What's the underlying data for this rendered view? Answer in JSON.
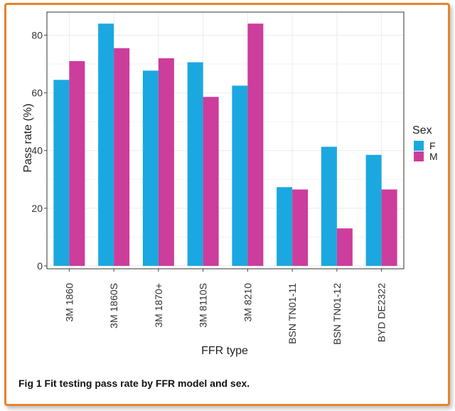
{
  "caption": "Fig 1 Fit testing pass rate by FFR model and sex.",
  "colors": {
    "frame": "#e8842c",
    "F": "#1ba8e0",
    "M": "#cc3d9c",
    "grid": "#ebebeb",
    "axis": "#444444"
  },
  "chart_data": {
    "type": "bar",
    "title": "",
    "xlabel": "FFR type",
    "ylabel": "Pass rate (%)",
    "ylim": [
      -1,
      88
    ],
    "yticks": [
      0,
      20,
      40,
      60,
      80
    ],
    "categories": [
      "3M 1860",
      "3M 1860S",
      "3M 1870+",
      "3M 8110S",
      "3M 8210",
      "BSN TN01-11",
      "BSN TN01-12",
      "BYD DE2322"
    ],
    "legend_title": "Sex",
    "legend_position": "right",
    "series": [
      {
        "name": "F",
        "values": [
          64.5,
          84,
          67.7,
          70.6,
          62.5,
          27.3,
          41.3,
          38.5
        ]
      },
      {
        "name": "M",
        "values": [
          71,
          75.5,
          72,
          58.6,
          84,
          26.5,
          13,
          26.5
        ]
      }
    ]
  }
}
